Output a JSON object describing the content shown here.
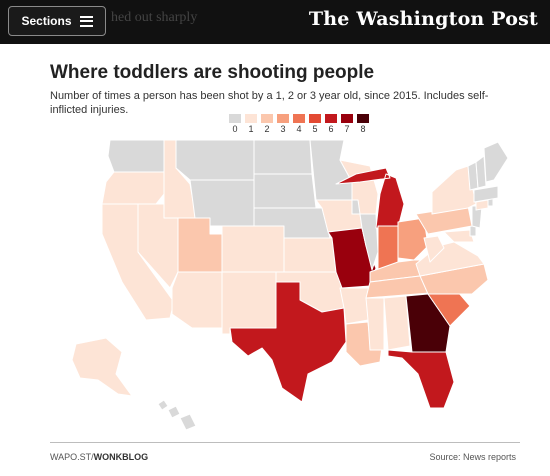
{
  "header": {
    "sections_label": "Sections",
    "background_text": "hed out sharply",
    "logo_text": "The Washington Post"
  },
  "graphic": {
    "title": "Where toddlers are shooting people",
    "subtitle": "Number of times a person has been shot by a 1, 2 or 3 year old, since 2015. Includes self-inflicted injuries.",
    "footer_left_light": "WAPO.ST/",
    "footer_left_bold": "WONKBLOG",
    "footer_right": "Source: News reports"
  },
  "legend": [
    {
      "label": "0",
      "color": "#d9d9d9"
    },
    {
      "label": "1",
      "color": "#fde4d6"
    },
    {
      "label": "2",
      "color": "#fbc7ad"
    },
    {
      "label": "3",
      "color": "#f7a07e"
    },
    {
      "label": "4",
      "color": "#ef7453"
    },
    {
      "label": "5",
      "color": "#e34a33"
    },
    {
      "label": "6",
      "color": "#c2181d"
    },
    {
      "label": "7",
      "color": "#99000d"
    },
    {
      "label": "8",
      "color": "#4a0007"
    }
  ],
  "chart_data": {
    "type": "choropleth",
    "title": "Where toddlers are shooting people",
    "subtitle": "Number of times a person has been shot by a 1, 2 or 3 year old, since 2015. Includes self-inflicted injuries.",
    "scale": [
      0,
      1,
      2,
      3,
      4,
      5,
      6,
      7,
      8
    ],
    "states": [
      {
        "state": "WA",
        "value": 0
      },
      {
        "state": "OR",
        "value": 1
      },
      {
        "state": "CA",
        "value": 1
      },
      {
        "state": "NV",
        "value": 1
      },
      {
        "state": "ID",
        "value": 1
      },
      {
        "state": "MT",
        "value": 0
      },
      {
        "state": "WY",
        "value": 0
      },
      {
        "state": "UT",
        "value": 2
      },
      {
        "state": "AZ",
        "value": 1
      },
      {
        "state": "CO",
        "value": 1
      },
      {
        "state": "NM",
        "value": 1
      },
      {
        "state": "ND",
        "value": 0
      },
      {
        "state": "SD",
        "value": 0
      },
      {
        "state": "NE",
        "value": 0
      },
      {
        "state": "KS",
        "value": 1
      },
      {
        "state": "OK",
        "value": 1
      },
      {
        "state": "TX",
        "value": 6
      },
      {
        "state": "MN",
        "value": 0
      },
      {
        "state": "IA",
        "value": 1
      },
      {
        "state": "MO",
        "value": 7
      },
      {
        "state": "AR",
        "value": 1
      },
      {
        "state": "LA",
        "value": 2
      },
      {
        "state": "WI",
        "value": 1
      },
      {
        "state": "IL",
        "value": 0
      },
      {
        "state": "MI",
        "value": 6
      },
      {
        "state": "IN",
        "value": 4
      },
      {
        "state": "OH",
        "value": 3
      },
      {
        "state": "KY",
        "value": 2
      },
      {
        "state": "TN",
        "value": 2
      },
      {
        "state": "MS",
        "value": 1
      },
      {
        "state": "AL",
        "value": 1
      },
      {
        "state": "GA",
        "value": 8
      },
      {
        "state": "FL",
        "value": 6
      },
      {
        "state": "SC",
        "value": 4
      },
      {
        "state": "NC",
        "value": 2
      },
      {
        "state": "VA",
        "value": 1
      },
      {
        "state": "WV",
        "value": 1
      },
      {
        "state": "MD",
        "value": 1
      },
      {
        "state": "DE",
        "value": 0
      },
      {
        "state": "PA",
        "value": 2
      },
      {
        "state": "NY",
        "value": 1
      },
      {
        "state": "NJ",
        "value": 0
      },
      {
        "state": "CT",
        "value": 1
      },
      {
        "state": "RI",
        "value": 0
      },
      {
        "state": "MA",
        "value": 0
      },
      {
        "state": "VT",
        "value": 0
      },
      {
        "state": "NH",
        "value": 0
      },
      {
        "state": "ME",
        "value": 0
      },
      {
        "state": "AK",
        "value": 1
      },
      {
        "state": "HI",
        "value": 0
      }
    ]
  }
}
